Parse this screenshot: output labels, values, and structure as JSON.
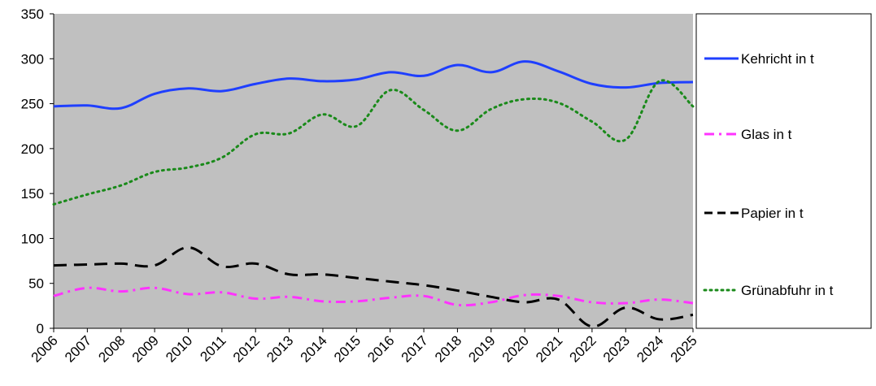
{
  "chart_data": {
    "type": "line",
    "title": "",
    "xlabel": "",
    "ylabel": "",
    "x": [
      "2006",
      "2007",
      "2008",
      "2009",
      "2010",
      "2011",
      "2012",
      "2013",
      "2014",
      "2015",
      "2016",
      "2017",
      "2018",
      "2019",
      "2020",
      "2021",
      "2022",
      "2023",
      "2024",
      "2025"
    ],
    "ylim": [
      0,
      350
    ],
    "yticks": [
      0,
      50,
      100,
      150,
      200,
      250,
      300,
      350
    ],
    "grid": false,
    "plot_background": "#c0c0c0",
    "legend_position": "right",
    "series": [
      {
        "name": "Kehricht in t",
        "color": "#1f3fff",
        "style": "solid",
        "values": [
          247,
          248,
          245,
          261,
          267,
          264,
          272,
          278,
          275,
          277,
          285,
          281,
          293,
          285,
          297,
          286,
          272,
          268,
          273,
          274
        ]
      },
      {
        "name": "Glas in t",
        "color": "#ff33ff",
        "style": "dashdot",
        "values": [
          36,
          45,
          41,
          45,
          38,
          40,
          33,
          35,
          30,
          30,
          34,
          36,
          26,
          29,
          37,
          36,
          29,
          28,
          32,
          28
        ]
      },
      {
        "name": "Papier in t",
        "color": "#000000",
        "style": "dashed",
        "values": [
          70,
          71,
          72,
          70,
          90,
          69,
          72,
          60,
          60,
          56,
          52,
          48,
          42,
          35,
          29,
          32,
          2,
          23,
          10,
          15
        ]
      },
      {
        "name": "Grünabfuhr in t",
        "color": "#1a8a1a",
        "style": "dotted",
        "values": [
          138,
          149,
          159,
          174,
          179,
          190,
          216,
          217,
          238,
          225,
          265,
          243,
          220,
          244,
          255,
          251,
          230,
          210,
          275,
          247
        ]
      }
    ]
  }
}
